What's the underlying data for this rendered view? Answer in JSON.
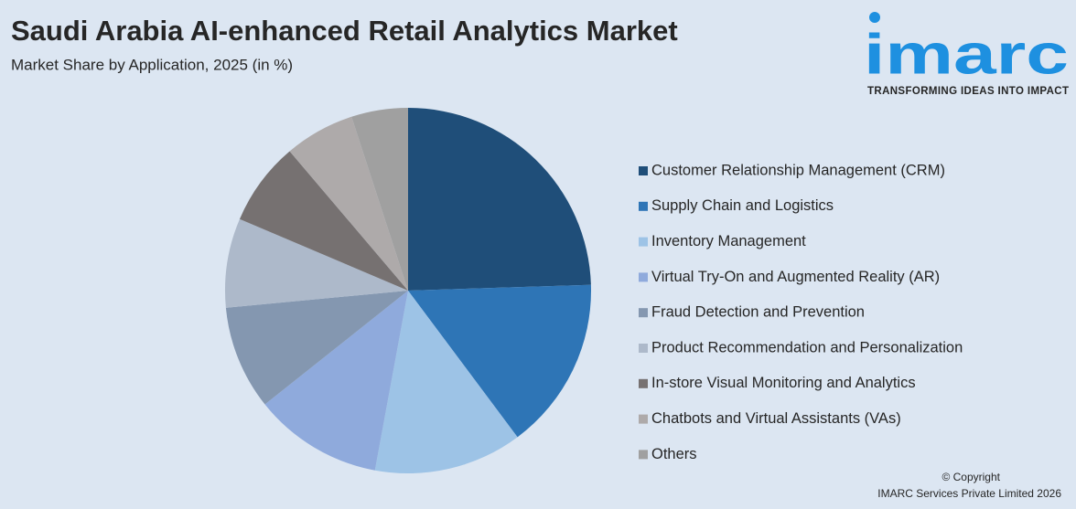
{
  "chart_data": {
    "type": "pie",
    "title": "Saudi Arabia AI-enhanced Retail Analytics Market",
    "subtitle": "Market Share by Application, 2025 (in %)",
    "categories": [
      "Customer Relationship Management (CRM)",
      "Supply Chain and Logistics",
      "Inventory Management",
      "Virtual Try-On and Augmented Reality (AR)",
      "Fraud Detection and Prevention",
      "Product Recommendation and Personalization",
      "In-store Visual Monitoring and Analytics",
      "Chatbots and Virtual Assistants (VAs)",
      "Others"
    ],
    "values": [
      24.5,
      15.3,
      13.1,
      11.4,
      9.2,
      7.9,
      7.4,
      6.2,
      5.0
    ],
    "colors": [
      "#1f4e79",
      "#2e75b6",
      "#9dc3e6",
      "#8faadc",
      "#8497b0",
      "#adb9ca",
      "#767171",
      "#aeaaaa",
      "#a0a0a0"
    ],
    "legend": "right"
  },
  "logo": {
    "name": "imarc",
    "tagline": "TRANSFORMING IDEAS INTO IMPACT"
  },
  "footer": {
    "copyright": "© Copyright",
    "company": "IMARC Services Private Limited 2026"
  }
}
